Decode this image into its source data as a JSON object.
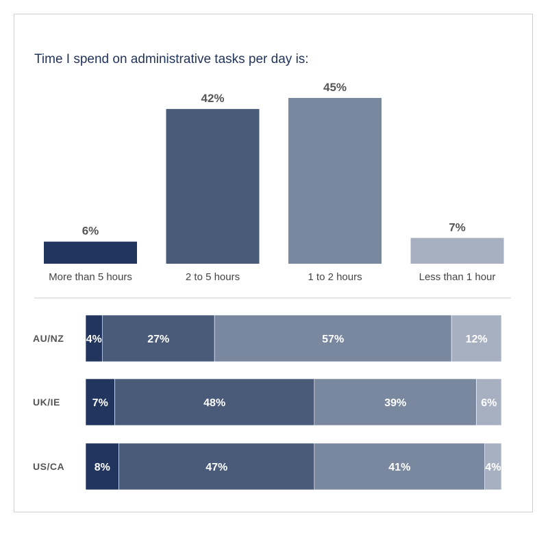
{
  "title": "Time I spend on administrative tasks per day is:",
  "colors": [
    "#22355e",
    "#4a5b7a",
    "#79879f",
    "#a7b0c0"
  ],
  "chart_data": [
    {
      "type": "bar",
      "title": "Time I spend on administrative tasks per day is:",
      "categories": [
        "More than 5 hours",
        "2 to 5 hours",
        "1 to 2 hours",
        "Less than 1 hour"
      ],
      "values": [
        6,
        42,
        45,
        7
      ],
      "value_labels": [
        "6%",
        "42%",
        "45%",
        "7%"
      ],
      "unit": "%",
      "ylim": [
        0,
        45
      ],
      "grid": false
    },
    {
      "type": "bar",
      "orientation": "horizontal",
      "stacked": true,
      "categories": [
        "AU/NZ",
        "UK/IE",
        "US/CA"
      ],
      "series": [
        {
          "name": "More than 5 hours",
          "values": [
            4,
            7,
            8
          ],
          "labels": [
            "4%",
            "7%",
            "8%"
          ]
        },
        {
          "name": "2 to 5 hours",
          "values": [
            27,
            48,
            47
          ],
          "labels": [
            "27%",
            "48%",
            "47%"
          ]
        },
        {
          "name": "1 to 2 hours",
          "values": [
            57,
            39,
            41
          ],
          "labels": [
            "57%",
            "39%",
            "41%"
          ]
        },
        {
          "name": "Less than 1 hour",
          "values": [
            12,
            6,
            4
          ],
          "labels": [
            "12%",
            "6%",
            "4%"
          ]
        }
      ],
      "xlim": [
        0,
        100
      ]
    }
  ]
}
